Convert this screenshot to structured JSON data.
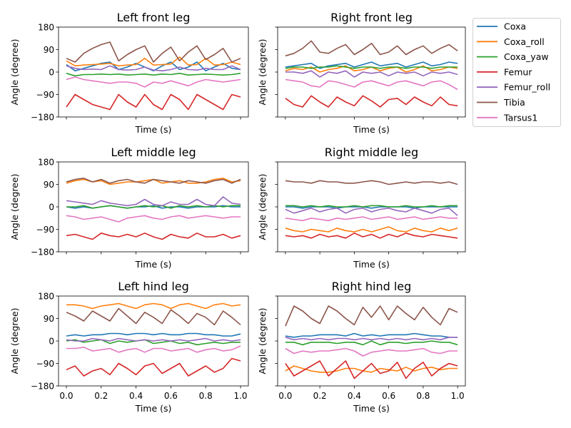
{
  "chart_data": {
    "type": "line",
    "legend": {
      "placement": "outside-top-right"
    },
    "x": [
      0,
      0.05,
      0.1,
      0.15,
      0.2,
      0.25,
      0.3,
      0.35,
      0.4,
      0.45,
      0.5,
      0.55,
      0.6,
      0.65,
      0.7,
      0.75,
      0.8,
      0.85,
      0.9,
      0.95,
      1.0
    ],
    "series_names": [
      "Coxa",
      "Coxa_roll",
      "Coxa_yaw",
      "Femur",
      "Femur_roll",
      "Tibia",
      "Tarsus1"
    ],
    "colors": {
      "Coxa": "#1f77b4",
      "Coxa_roll": "#ff7f0e",
      "Coxa_yaw": "#2ca02c",
      "Femur": "#d62728",
      "Femur_roll": "#9467bd",
      "Tibia": "#8c564b",
      "Tarsus1": "#e377c2"
    },
    "xlabel": "Time (s)",
    "ylabel": "Angle (degree)",
    "ylim": [
      -180,
      180
    ],
    "xlim": [
      -0.045,
      1.045
    ],
    "yticks": [
      "180",
      "90",
      "0",
      "−90",
      "−180"
    ],
    "ytick_values": [
      180,
      90,
      0,
      -90,
      -180
    ],
    "xticks": [
      "0.0",
      "0.2",
      "0.4",
      "0.6",
      "0.8",
      "1.0"
    ],
    "xtick_values": [
      0,
      0.2,
      0.4,
      0.6,
      0.8,
      1.0
    ],
    "panels": [
      {
        "title": "Left front leg",
        "series": {
          "Coxa": [
            30,
            5,
            15,
            25,
            35,
            40,
            10,
            20,
            35,
            20,
            5,
            25,
            40,
            10,
            20,
            40,
            5,
            20,
            35,
            15,
            10
          ],
          "Coxa_roll": [
            45,
            25,
            28,
            30,
            32,
            35,
            25,
            28,
            30,
            55,
            28,
            30,
            32,
            60,
            28,
            30,
            55,
            28,
            30,
            40,
            30
          ],
          "Coxa_yaw": [
            -5,
            -15,
            -10,
            -10,
            -8,
            -10,
            -8,
            -12,
            -10,
            -8,
            -12,
            -8,
            -10,
            -5,
            -12,
            -10,
            -8,
            -10,
            -12,
            -10,
            -5
          ],
          "Femur": [
            -140,
            -90,
            -110,
            -130,
            -140,
            -150,
            -90,
            -120,
            -140,
            -90,
            -130,
            -150,
            -90,
            -110,
            -150,
            -90,
            -110,
            -130,
            -150,
            -90,
            -100
          ],
          "Femur_roll": [
            25,
            15,
            10,
            12,
            10,
            25,
            10,
            8,
            10,
            20,
            8,
            5,
            10,
            20,
            10,
            8,
            15,
            10,
            10,
            25,
            10
          ],
          "Tibia": [
            55,
            40,
            75,
            95,
            110,
            120,
            45,
            70,
            90,
            105,
            40,
            75,
            100,
            45,
            80,
            105,
            50,
            70,
            95,
            40,
            55
          ],
          "Tarsus1": [
            -30,
            -20,
            -30,
            -35,
            -40,
            -45,
            -40,
            -40,
            -45,
            -60,
            -40,
            -45,
            -35,
            -45,
            -55,
            -40,
            -30,
            -35,
            -40,
            -35,
            -30
          ]
        }
      },
      {
        "title": "Right front leg",
        "series": {
          "Coxa": [
            20,
            25,
            30,
            35,
            15,
            25,
            30,
            35,
            20,
            30,
            40,
            25,
            30,
            35,
            20,
            30,
            40,
            25,
            30,
            40,
            35
          ],
          "Coxa_roll": [
            5,
            15,
            10,
            20,
            0,
            10,
            15,
            25,
            5,
            10,
            20,
            5,
            15,
            20,
            0,
            10,
            25,
            5,
            10,
            20,
            15
          ],
          "Coxa_yaw": [
            15,
            20,
            20,
            15,
            20,
            20,
            25,
            20,
            15,
            20,
            20,
            15,
            20,
            20,
            15,
            20,
            20,
            15,
            20,
            20,
            20
          ],
          "Femur": [
            -105,
            -130,
            -140,
            -95,
            -120,
            -140,
            -100,
            -120,
            -135,
            -95,
            -115,
            -140,
            -110,
            -105,
            -130,
            -100,
            -120,
            -135,
            -100,
            -130,
            -135
          ],
          "Femur_roll": [
            0,
            0,
            -5,
            5,
            -20,
            0,
            -5,
            5,
            -20,
            0,
            -5,
            0,
            -15,
            0,
            -5,
            0,
            -15,
            0,
            -5,
            0,
            -10
          ],
          "Tibia": [
            65,
            75,
            95,
            125,
            80,
            75,
            95,
            110,
            70,
            90,
            115,
            70,
            80,
            105,
            70,
            90,
            105,
            75,
            95,
            110,
            85
          ],
          "Tarsus1": [
            -30,
            -35,
            -40,
            -55,
            -60,
            -35,
            -40,
            -50,
            -60,
            -40,
            -35,
            -45,
            -55,
            -40,
            -35,
            -45,
            -55,
            -40,
            -35,
            -50,
            -70
          ]
        }
      },
      {
        "title": "Left middle leg",
        "series": {
          "Coxa": [
            0,
            -5,
            0,
            -5,
            0,
            5,
            0,
            -5,
            0,
            0,
            5,
            -5,
            0,
            0,
            -5,
            0,
            0,
            0,
            5,
            0,
            0
          ],
          "Coxa_roll": [
            95,
            105,
            110,
            100,
            105,
            90,
            95,
            100,
            100,
            105,
            110,
            95,
            100,
            105,
            95,
            95,
            100,
            110,
            115,
            100,
            105
          ],
          "Coxa_yaw": [
            0,
            0,
            5,
            -5,
            0,
            5,
            0,
            -5,
            0,
            5,
            0,
            5,
            -5,
            5,
            0,
            5,
            0,
            5,
            0,
            5,
            5
          ],
          "Femur": [
            -115,
            -110,
            -120,
            -130,
            -105,
            -115,
            -120,
            -110,
            -120,
            -105,
            -120,
            -130,
            -110,
            -120,
            -125,
            -105,
            -120,
            -120,
            -110,
            -125,
            -115
          ],
          "Femur_roll": [
            25,
            20,
            15,
            10,
            25,
            15,
            10,
            5,
            10,
            30,
            10,
            5,
            20,
            10,
            10,
            30,
            10,
            5,
            40,
            15,
            10
          ],
          "Tibia": [
            100,
            110,
            115,
            100,
            110,
            95,
            105,
            110,
            100,
            95,
            110,
            105,
            100,
            95,
            105,
            100,
            95,
            105,
            110,
            95,
            110
          ],
          "Tarsus1": [
            -35,
            -40,
            -50,
            -45,
            -40,
            -50,
            -60,
            -45,
            -40,
            -35,
            -45,
            -50,
            -40,
            -35,
            -45,
            -40,
            -35,
            -40,
            -45,
            -40,
            -40
          ]
        }
      },
      {
        "title": "Right middle leg",
        "series": {
          "Coxa": [
            0,
            0,
            -5,
            0,
            0,
            0,
            -5,
            0,
            0,
            0,
            -5,
            0,
            0,
            0,
            0,
            -5,
            0,
            0,
            0,
            0,
            0
          ],
          "Coxa_roll": [
            -85,
            -95,
            -100,
            -90,
            -95,
            -100,
            -85,
            -95,
            -100,
            -90,
            -100,
            -90,
            -80,
            -95,
            -100,
            -85,
            -95,
            -100,
            -85,
            -95,
            -85
          ],
          "Coxa_yaw": [
            5,
            5,
            0,
            5,
            0,
            5,
            0,
            0,
            5,
            0,
            5,
            5,
            0,
            0,
            5,
            0,
            0,
            5,
            0,
            5,
            5
          ],
          "Femur": [
            -115,
            -120,
            -115,
            -125,
            -110,
            -120,
            -115,
            -125,
            -105,
            -120,
            -110,
            -125,
            -110,
            -120,
            -105,
            -115,
            -120,
            -110,
            -115,
            -120,
            -125
          ],
          "Femur_roll": [
            -10,
            -25,
            -15,
            -5,
            -20,
            -10,
            -5,
            -25,
            -10,
            -5,
            -20,
            -10,
            -5,
            -15,
            -20,
            -5,
            -15,
            -25,
            -10,
            -5,
            -35
          ],
          "Tibia": [
            105,
            100,
            100,
            95,
            105,
            100,
            100,
            95,
            95,
            100,
            105,
            100,
            90,
            95,
            100,
            95,
            100,
            100,
            95,
            100,
            90
          ],
          "Tarsus1": [
            -45,
            -50,
            -55,
            -45,
            -50,
            -55,
            -45,
            -50,
            -45,
            -40,
            -50,
            -45,
            -40,
            -50,
            -45,
            -40,
            -50,
            -45,
            -40,
            -45,
            -45
          ]
        }
      },
      {
        "title": "Left hind leg",
        "series": {
          "Coxa": [
            20,
            25,
            20,
            25,
            25,
            30,
            30,
            25,
            30,
            30,
            25,
            30,
            25,
            25,
            30,
            30,
            25,
            25,
            20,
            20,
            28
          ],
          "Coxa_roll": [
            145,
            145,
            140,
            130,
            140,
            145,
            150,
            140,
            130,
            145,
            150,
            145,
            130,
            145,
            150,
            140,
            130,
            145,
            150,
            140,
            145
          ],
          "Coxa_yaw": [
            0,
            5,
            -5,
            0,
            5,
            -10,
            0,
            -5,
            0,
            5,
            -10,
            -5,
            0,
            -10,
            -5,
            -15,
            -10,
            -5,
            -10,
            -5,
            -5
          ],
          "Femur": [
            -115,
            -100,
            -140,
            -120,
            -110,
            -135,
            -90,
            -110,
            -135,
            -100,
            -90,
            -130,
            -110,
            -90,
            -140,
            -120,
            -100,
            -125,
            -110,
            -70,
            -80
          ],
          "Femur_roll": [
            5,
            0,
            0,
            10,
            5,
            0,
            10,
            5,
            0,
            5,
            0,
            5,
            0,
            5,
            0,
            5,
            10,
            0,
            5,
            0,
            5
          ],
          "Tibia": [
            115,
            100,
            80,
            120,
            100,
            80,
            130,
            100,
            70,
            115,
            95,
            70,
            125,
            100,
            70,
            110,
            95,
            65,
            120,
            95,
            65
          ],
          "Tarsus1": [
            -30,
            -30,
            -25,
            -40,
            -35,
            -30,
            -45,
            -35,
            -30,
            -45,
            -30,
            -30,
            -40,
            -35,
            -30,
            -45,
            -35,
            -30,
            -40,
            -35,
            -20
          ]
        }
      },
      {
        "title": "Right hind leg",
        "series": {
          "Coxa": [
            20,
            15,
            20,
            20,
            25,
            25,
            25,
            20,
            30,
            20,
            25,
            20,
            25,
            25,
            25,
            30,
            25,
            20,
            20,
            15,
            15
          ],
          "Coxa_roll": [
            -120,
            -100,
            -110,
            -120,
            -125,
            -125,
            -120,
            -110,
            -110,
            -120,
            -125,
            -110,
            -115,
            -120,
            -105,
            -120,
            -110,
            -105,
            -115,
            -110,
            -110
          ],
          "Coxa_yaw": [
            -5,
            -5,
            -15,
            -5,
            -5,
            -5,
            -10,
            -5,
            -5,
            -15,
            0,
            -15,
            -5,
            -5,
            -10,
            -5,
            -5,
            0,
            -5,
            -5,
            -15
          ],
          "Femur": [
            -90,
            -140,
            -120,
            -100,
            -80,
            -140,
            -110,
            -80,
            -150,
            -120,
            -90,
            -130,
            -120,
            -85,
            -150,
            -110,
            -85,
            -140,
            -110,
            -90,
            -100
          ],
          "Femur_roll": [
            15,
            5,
            10,
            5,
            10,
            5,
            10,
            10,
            5,
            10,
            5,
            10,
            5,
            10,
            5,
            10,
            5,
            10,
            5,
            15,
            15
          ],
          "Tibia": [
            60,
            140,
            120,
            90,
            70,
            140,
            120,
            90,
            65,
            135,
            95,
            140,
            85,
            140,
            110,
            85,
            135,
            95,
            65,
            130,
            115
          ],
          "Tarsus1": [
            -30,
            -50,
            -40,
            -45,
            -40,
            -40,
            -35,
            -30,
            -40,
            -60,
            -45,
            -40,
            -35,
            -40,
            -40,
            -35,
            -30,
            -45,
            -50,
            -40,
            -40
          ]
        }
      }
    ]
  }
}
